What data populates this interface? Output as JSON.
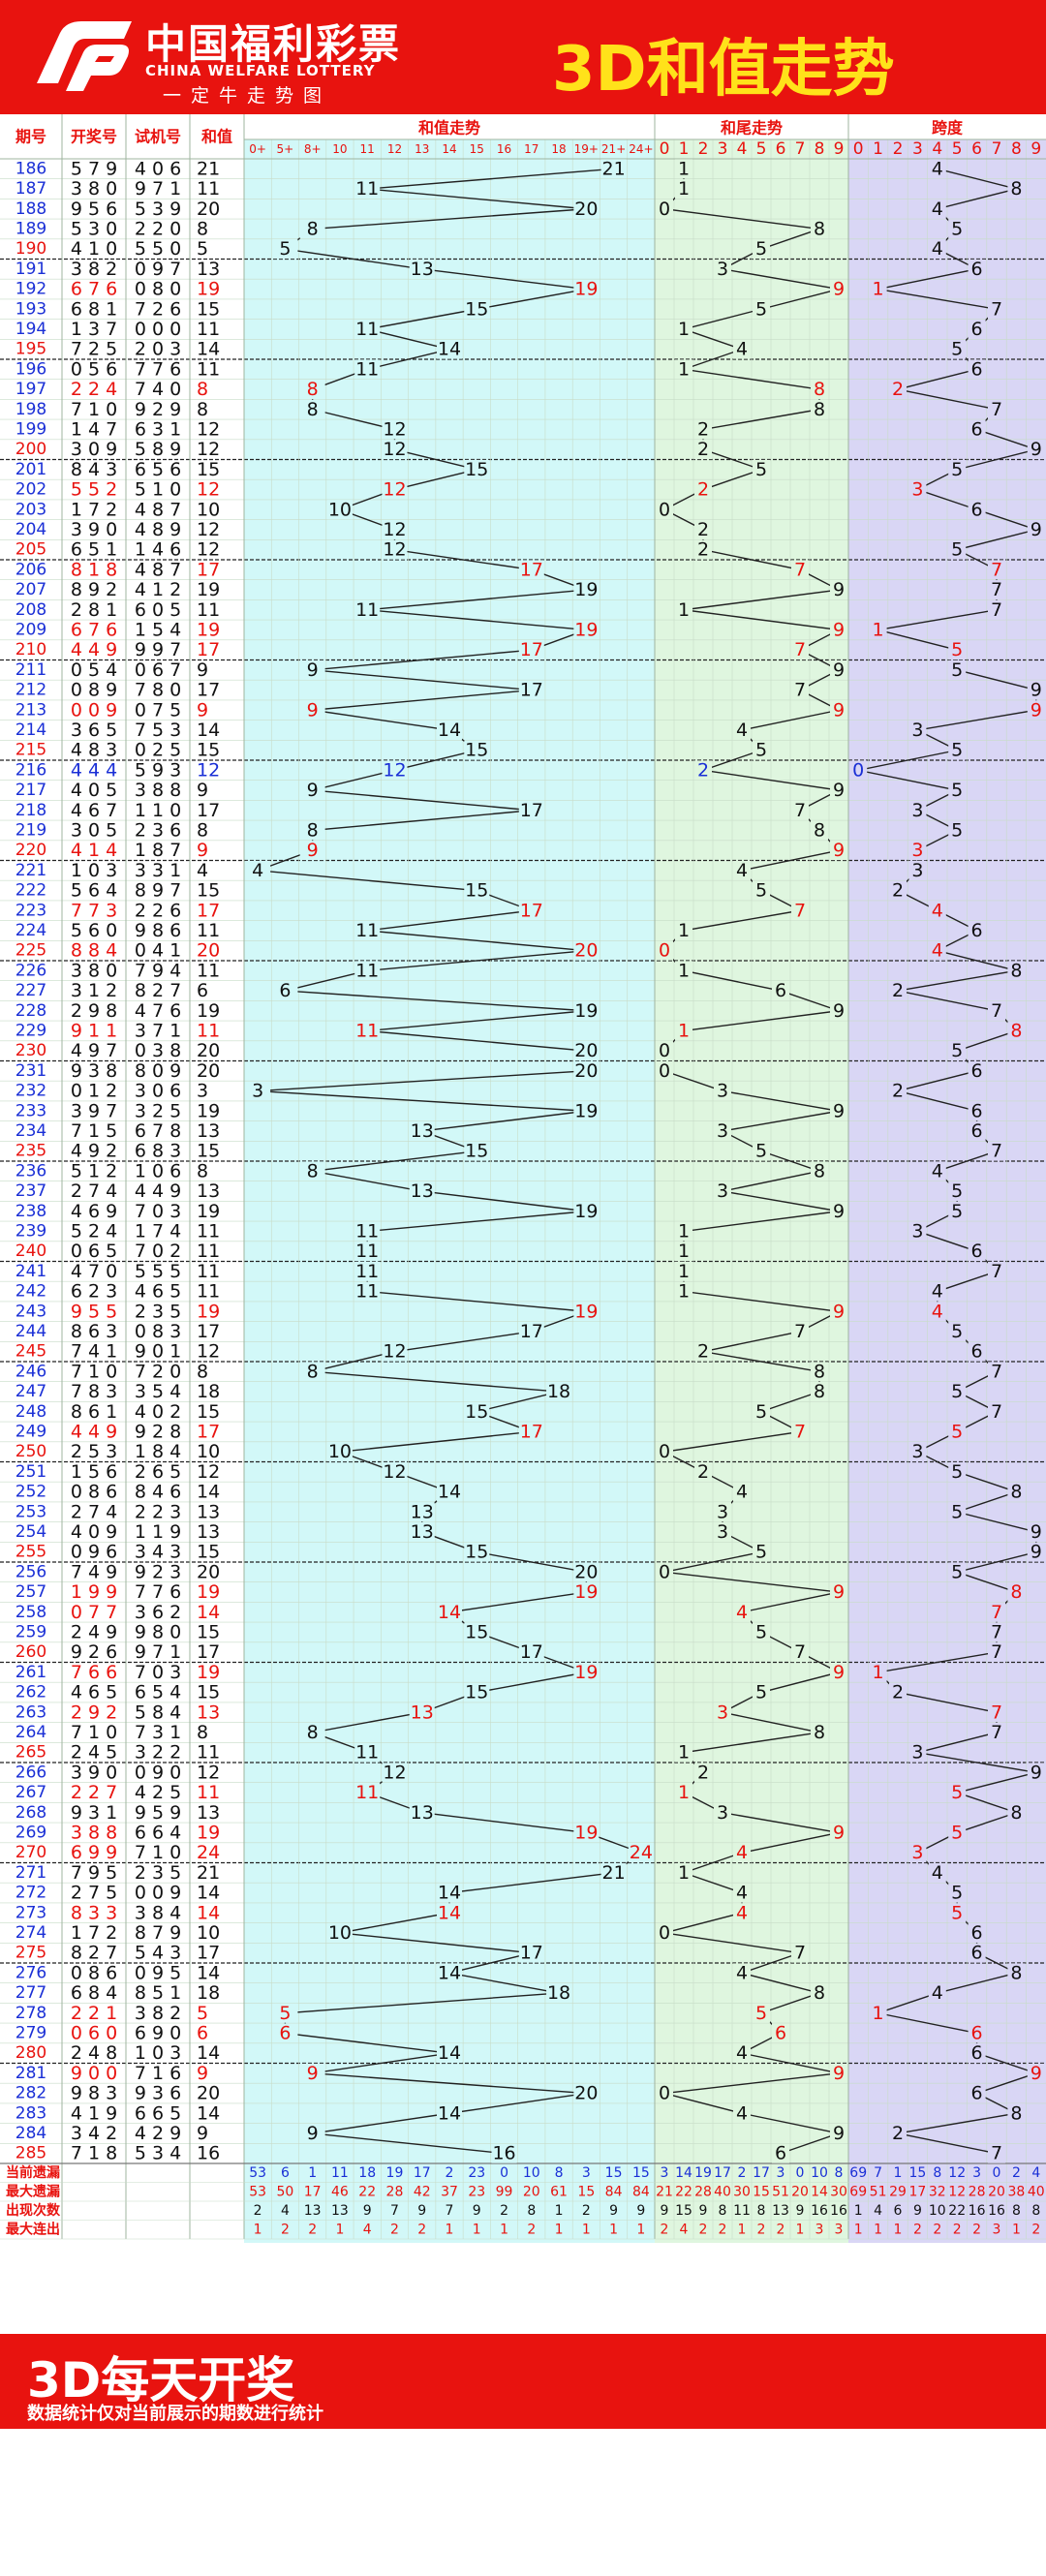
{
  "header": {
    "brand_cn": "中国福利彩票",
    "brand_en": "CHINA WELFARE LOTTERY",
    "slogan": "一定牛走势图",
    "title": "3D和值走势",
    "title_color": "#ffe21a",
    "accent": "#e8130f"
  },
  "footer": {
    "title": "3D每天开奖",
    "note": "数据统计仅对当前展示的期数进行统计"
  },
  "chart_data": {
    "type": "table",
    "columns": {
      "period": "期号",
      "draw": "开奖号",
      "test": "试机号",
      "sum": "和值",
      "sum_trend": "和值走势",
      "tail_trend": "和尾走势",
      "span": "跨度"
    },
    "sum_bins": [
      "0+",
      "5+",
      "8+",
      "10",
      "11",
      "12",
      "13",
      "14",
      "15",
      "16",
      "17",
      "18",
      "19+",
      "21+",
      "24+"
    ],
    "digits": [
      "0",
      "1",
      "2",
      "3",
      "4",
      "5",
      "6",
      "7",
      "8",
      "9"
    ],
    "colors": {
      "sum_bg": "#d2f8f8",
      "tail_bg": "#dff6df",
      "span_bg": "#d9d6f5",
      "red": "#e8130f",
      "blue": "#1a2fd6"
    },
    "rows": [
      [
        "186",
        "579",
        "406",
        "21",
        "n"
      ],
      [
        "187",
        "380",
        "971",
        "11",
        "n"
      ],
      [
        "188",
        "956",
        "539",
        "20",
        "n"
      ],
      [
        "189",
        "530",
        "220",
        "8",
        "n"
      ],
      [
        "190",
        "410",
        "550",
        "5",
        "n"
      ],
      [
        "191",
        "382",
        "097",
        "13",
        "n"
      ],
      [
        "192",
        "676",
        "080",
        "19",
        "r"
      ],
      [
        "193",
        "681",
        "726",
        "15",
        "n"
      ],
      [
        "194",
        "137",
        "000",
        "11",
        "n"
      ],
      [
        "195",
        "725",
        "203",
        "14",
        "n"
      ],
      [
        "196",
        "056",
        "776",
        "11",
        "n"
      ],
      [
        "197",
        "224",
        "740",
        "8",
        "r"
      ],
      [
        "198",
        "710",
        "929",
        "8",
        "n"
      ],
      [
        "199",
        "147",
        "631",
        "12",
        "n"
      ],
      [
        "200",
        "309",
        "589",
        "12",
        "n"
      ],
      [
        "201",
        "843",
        "656",
        "15",
        "n"
      ],
      [
        "202",
        "552",
        "510",
        "12",
        "r"
      ],
      [
        "203",
        "172",
        "487",
        "10",
        "n"
      ],
      [
        "204",
        "390",
        "489",
        "12",
        "n"
      ],
      [
        "205",
        "651",
        "146",
        "12",
        "n"
      ],
      [
        "206",
        "818",
        "487",
        "17",
        "r"
      ],
      [
        "207",
        "892",
        "412",
        "19",
        "n"
      ],
      [
        "208",
        "281",
        "605",
        "11",
        "n"
      ],
      [
        "209",
        "676",
        "154",
        "19",
        "r"
      ],
      [
        "210",
        "449",
        "997",
        "17",
        "r"
      ],
      [
        "211",
        "054",
        "067",
        "9",
        "n"
      ],
      [
        "212",
        "089",
        "780",
        "17",
        "n"
      ],
      [
        "213",
        "009",
        "075",
        "9",
        "r"
      ],
      [
        "214",
        "365",
        "753",
        "14",
        "n"
      ],
      [
        "215",
        "483",
        "025",
        "15",
        "n"
      ],
      [
        "216",
        "444",
        "593",
        "12",
        "b"
      ],
      [
        "217",
        "405",
        "388",
        "9",
        "n"
      ],
      [
        "218",
        "467",
        "110",
        "17",
        "n"
      ],
      [
        "219",
        "305",
        "236",
        "8",
        "n"
      ],
      [
        "220",
        "414",
        "187",
        "9",
        "r"
      ],
      [
        "221",
        "103",
        "331",
        "4",
        "n"
      ],
      [
        "222",
        "564",
        "897",
        "15",
        "n"
      ],
      [
        "223",
        "773",
        "226",
        "17",
        "r"
      ],
      [
        "224",
        "560",
        "986",
        "11",
        "n"
      ],
      [
        "225",
        "884",
        "041",
        "20",
        "r"
      ],
      [
        "226",
        "380",
        "794",
        "11",
        "n"
      ],
      [
        "227",
        "312",
        "827",
        "6",
        "n"
      ],
      [
        "228",
        "298",
        "476",
        "19",
        "n"
      ],
      [
        "229",
        "911",
        "371",
        "11",
        "r"
      ],
      [
        "230",
        "497",
        "038",
        "20",
        "n"
      ],
      [
        "231",
        "938",
        "809",
        "20",
        "n"
      ],
      [
        "232",
        "012",
        "306",
        "3",
        "n"
      ],
      [
        "233",
        "397",
        "325",
        "19",
        "n"
      ],
      [
        "234",
        "715",
        "678",
        "13",
        "n"
      ],
      [
        "235",
        "492",
        "683",
        "15",
        "n"
      ],
      [
        "236",
        "512",
        "106",
        "8",
        "n"
      ],
      [
        "237",
        "274",
        "449",
        "13",
        "n"
      ],
      [
        "238",
        "469",
        "703",
        "19",
        "n"
      ],
      [
        "239",
        "524",
        "174",
        "11",
        "n"
      ],
      [
        "240",
        "065",
        "702",
        "11",
        "n"
      ],
      [
        "241",
        "470",
        "555",
        "11",
        "n"
      ],
      [
        "242",
        "623",
        "465",
        "11",
        "n"
      ],
      [
        "243",
        "955",
        "235",
        "19",
        "r"
      ],
      [
        "244",
        "863",
        "083",
        "17",
        "n"
      ],
      [
        "245",
        "741",
        "901",
        "12",
        "n"
      ],
      [
        "246",
        "710",
        "720",
        "8",
        "n"
      ],
      [
        "247",
        "783",
        "354",
        "18",
        "n"
      ],
      [
        "248",
        "861",
        "402",
        "15",
        "n"
      ],
      [
        "249",
        "449",
        "928",
        "17",
        "r"
      ],
      [
        "250",
        "253",
        "184",
        "10",
        "n"
      ],
      [
        "251",
        "156",
        "265",
        "12",
        "n"
      ],
      [
        "252",
        "086",
        "846",
        "14",
        "n"
      ],
      [
        "253",
        "274",
        "223",
        "13",
        "n"
      ],
      [
        "254",
        "409",
        "119",
        "13",
        "n"
      ],
      [
        "255",
        "096",
        "343",
        "15",
        "n"
      ],
      [
        "256",
        "749",
        "923",
        "20",
        "n"
      ],
      [
        "257",
        "199",
        "776",
        "19",
        "r"
      ],
      [
        "258",
        "077",
        "362",
        "14",
        "r"
      ],
      [
        "259",
        "249",
        "980",
        "15",
        "n"
      ],
      [
        "260",
        "926",
        "971",
        "17",
        "n"
      ],
      [
        "261",
        "766",
        "703",
        "19",
        "r"
      ],
      [
        "262",
        "465",
        "654",
        "15",
        "n"
      ],
      [
        "263",
        "292",
        "584",
        "13",
        "r"
      ],
      [
        "264",
        "710",
        "731",
        "8",
        "n"
      ],
      [
        "265",
        "245",
        "322",
        "11",
        "n"
      ],
      [
        "266",
        "390",
        "090",
        "12",
        "n"
      ],
      [
        "267",
        "227",
        "425",
        "11",
        "r"
      ],
      [
        "268",
        "931",
        "959",
        "13",
        "n"
      ],
      [
        "269",
        "388",
        "664",
        "19",
        "r"
      ],
      [
        "270",
        "699",
        "710",
        "24",
        "r"
      ],
      [
        "271",
        "795",
        "235",
        "21",
        "n"
      ],
      [
        "272",
        "275",
        "009",
        "14",
        "n"
      ],
      [
        "273",
        "833",
        "384",
        "14",
        "r"
      ],
      [
        "274",
        "172",
        "879",
        "10",
        "n"
      ],
      [
        "275",
        "827",
        "543",
        "17",
        "n"
      ],
      [
        "276",
        "086",
        "095",
        "14",
        "n"
      ],
      [
        "277",
        "684",
        "851",
        "18",
        "n"
      ],
      [
        "278",
        "221",
        "382",
        "5",
        "r"
      ],
      [
        "279",
        "060",
        "690",
        "6",
        "r"
      ],
      [
        "280",
        "248",
        "103",
        "14",
        "n"
      ],
      [
        "281",
        "900",
        "716",
        "9",
        "r"
      ],
      [
        "282",
        "983",
        "936",
        "20",
        "n"
      ],
      [
        "283",
        "419",
        "665",
        "14",
        "n"
      ],
      [
        "284",
        "342",
        "429",
        "9",
        "n"
      ],
      [
        "285",
        "718",
        "534",
        "16",
        "n"
      ]
    ],
    "stats": [
      {
        "label": "当前遗漏",
        "sum": [
          "53",
          "6",
          "1",
          "11",
          "18",
          "19",
          "17",
          "2",
          "23",
          "0",
          "10",
          "8",
          "3",
          "15",
          "15"
        ],
        "tail": [
          "3",
          "14",
          "19",
          "17",
          "2",
          "17",
          "3",
          "0",
          "10",
          "8"
        ],
        "span": [
          "69",
          "7",
          "1",
          "15",
          "8",
          "12",
          "3",
          "0",
          "2",
          "4"
        ]
      },
      {
        "label": "最大遗漏",
        "sum": [
          "53",
          "50",
          "17",
          "46",
          "22",
          "28",
          "42",
          "37",
          "23",
          "99",
          "20",
          "61",
          "15",
          "84",
          "84"
        ],
        "tail": [
          "21",
          "22",
          "28",
          "40",
          "30",
          "15",
          "51",
          "20",
          "14",
          "30"
        ],
        "span": [
          "69",
          "51",
          "29",
          "17",
          "32",
          "12",
          "28",
          "20",
          "38",
          "40"
        ]
      },
      {
        "label": "出现次数",
        "sum": [
          "2",
          "4",
          "13",
          "13",
          "9",
          "7",
          "9",
          "7",
          "9",
          "2",
          "8",
          "1",
          "2",
          "9",
          "9"
        ],
        "tail": [
          "9",
          "15",
          "9",
          "8",
          "11",
          "8",
          "13",
          "9",
          "16",
          "16"
        ],
        "span": [
          "1",
          "4",
          "6",
          "9",
          "10",
          "22",
          "16",
          "16",
          "8",
          "8"
        ]
      },
      {
        "label": "最大连出",
        "sum": [
          "1",
          "2",
          "2",
          "1",
          "4",
          "2",
          "2",
          "1",
          "1",
          "1",
          "2",
          "1",
          "1",
          "1",
          "1"
        ],
        "tail": [
          "2",
          "4",
          "2",
          "2",
          "1",
          "2",
          "2",
          "1",
          "3",
          "3"
        ],
        "span": [
          "1",
          "1",
          "1",
          "2",
          "2",
          "2",
          "2",
          "3",
          "1",
          "2"
        ]
      }
    ]
  }
}
